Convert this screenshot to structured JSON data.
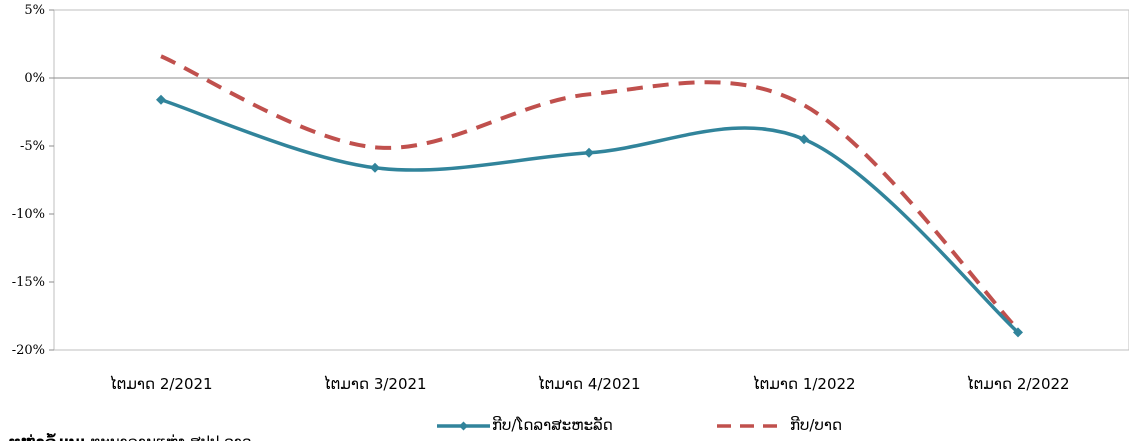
{
  "chart_data": {
    "type": "line",
    "categories": [
      "ໄຕມາດ 2/2021",
      "ໄຕມາດ 3/2021",
      "ໄຕມາດ 4/2021",
      "ໄຕມາດ 1/2022",
      "ໄຕມາດ 2/2022"
    ],
    "series": [
      {
        "name": "ກີບ/ໂດລາສະຫະລັດ",
        "values": [
          -1.6,
          -6.6,
          -5.5,
          -4.5,
          -18.7
        ],
        "color": "#31849B",
        "style": "solid-diamond"
      },
      {
        "name": "ກີບ/ບາດ",
        "values": [
          1.6,
          -5.1,
          -1.2,
          -2.0,
          -18.5
        ],
        "color": "#C0504D",
        "style": "dashed"
      }
    ],
    "ylim": [
      -20,
      5
    ],
    "yticks": [
      5,
      0,
      -5,
      -10,
      -15,
      -20
    ],
    "ytick_labels": [
      "5%",
      "0%",
      "-5%",
      "-10%",
      "-15%",
      "-20%"
    ],
    "grid": false,
    "legend_position": "bottom",
    "title": "",
    "xlabel": "",
    "ylabel": ""
  },
  "source": {
    "label": "ແຫຼ່ງຂໍ້ມູນ:",
    "text": " ທະນາຄານແຫ່ງ ສປປ ລາວ"
  }
}
